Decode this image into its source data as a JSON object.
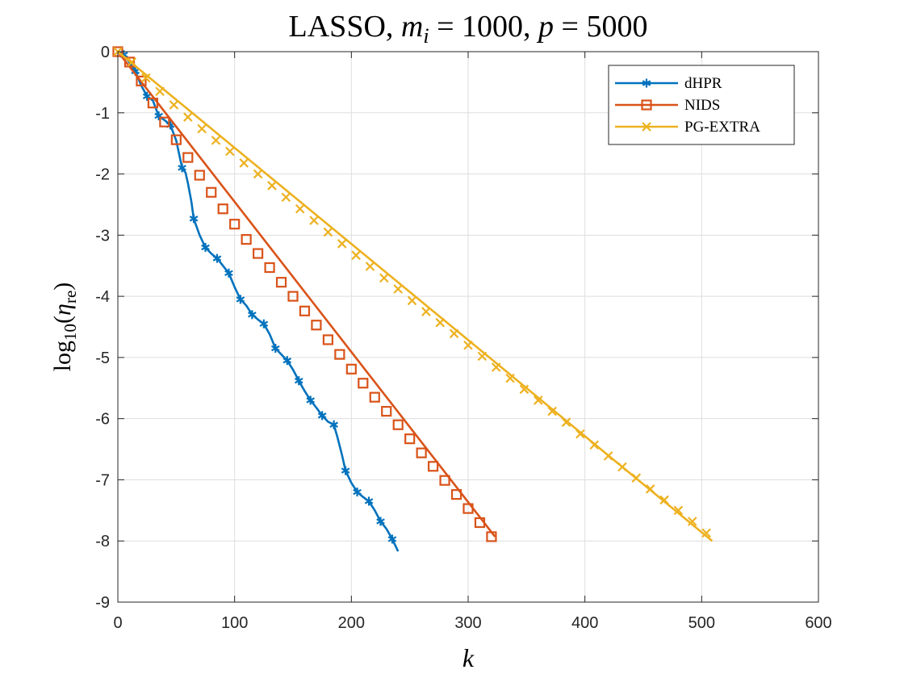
{
  "chart_data": {
    "type": "line",
    "title": {
      "pre": "LASSO, ",
      "m": "m",
      "m_sub": "i",
      "mid": " = 1000, ",
      "p": "p",
      "post": " = 5000"
    },
    "xlabel": "k",
    "ylabel": {
      "func": "log",
      "sub": "10",
      "open": "(",
      "var": "η",
      "var_sub": "re",
      "close": ")"
    },
    "xlim": [
      0,
      600
    ],
    "ylim": [
      -9,
      0
    ],
    "xticks": [
      0,
      100,
      200,
      300,
      400,
      500,
      600
    ],
    "yticks": [
      0,
      -1,
      -2,
      -3,
      -4,
      -5,
      -6,
      -7,
      -8,
      -9
    ],
    "grid": true,
    "legend_position": "top-right",
    "series": [
      {
        "name": "dHPR",
        "color": "#0072BD",
        "marker": "asterisk",
        "curve": [
          [
            0,
            0
          ],
          [
            5,
            -0.05
          ],
          [
            10,
            -0.18
          ],
          [
            15,
            -0.32
          ],
          [
            20,
            -0.55
          ],
          [
            25,
            -0.73
          ],
          [
            30,
            -0.8
          ],
          [
            35,
            -1.05
          ],
          [
            40,
            -1.12
          ],
          [
            45,
            -1.2
          ],
          [
            50,
            -1.45
          ],
          [
            55,
            -1.9
          ],
          [
            58,
            -1.98
          ],
          [
            60,
            -2.15
          ],
          [
            63,
            -2.45
          ],
          [
            65,
            -2.73
          ],
          [
            70,
            -3.0
          ],
          [
            75,
            -3.2
          ],
          [
            80,
            -3.3
          ],
          [
            85,
            -3.38
          ],
          [
            90,
            -3.5
          ],
          [
            95,
            -3.62
          ],
          [
            100,
            -3.85
          ],
          [
            105,
            -4.05
          ],
          [
            110,
            -4.15
          ],
          [
            115,
            -4.3
          ],
          [
            120,
            -4.38
          ],
          [
            125,
            -4.45
          ],
          [
            130,
            -4.62
          ],
          [
            135,
            -4.85
          ],
          [
            140,
            -4.95
          ],
          [
            145,
            -5.05
          ],
          [
            150,
            -5.2
          ],
          [
            155,
            -5.38
          ],
          [
            160,
            -5.55
          ],
          [
            165,
            -5.7
          ],
          [
            170,
            -5.82
          ],
          [
            175,
            -5.95
          ],
          [
            180,
            -6.05
          ],
          [
            185,
            -6.1
          ],
          [
            188,
            -6.3
          ],
          [
            192,
            -6.6
          ],
          [
            195,
            -6.85
          ],
          [
            200,
            -7.05
          ],
          [
            205,
            -7.2
          ],
          [
            210,
            -7.28
          ],
          [
            215,
            -7.35
          ],
          [
            220,
            -7.5
          ],
          [
            225,
            -7.68
          ],
          [
            230,
            -7.8
          ],
          [
            235,
            -7.97
          ],
          [
            240,
            -8.17
          ]
        ],
        "markers": [
          [
            5,
            -0.05
          ],
          [
            15,
            -0.32
          ],
          [
            25,
            -0.73
          ],
          [
            35,
            -1.05
          ],
          [
            45,
            -1.2
          ],
          [
            55,
            -1.9
          ],
          [
            65,
            -2.73
          ],
          [
            75,
            -3.2
          ],
          [
            85,
            -3.38
          ],
          [
            95,
            -3.62
          ],
          [
            105,
            -4.05
          ],
          [
            115,
            -4.3
          ],
          [
            125,
            -4.45
          ],
          [
            135,
            -4.85
          ],
          [
            145,
            -5.05
          ],
          [
            155,
            -5.38
          ],
          [
            165,
            -5.7
          ],
          [
            175,
            -5.95
          ],
          [
            185,
            -6.1
          ],
          [
            195,
            -6.85
          ],
          [
            205,
            -7.2
          ],
          [
            215,
            -7.35
          ],
          [
            225,
            -7.68
          ],
          [
            235,
            -7.97
          ]
        ]
      },
      {
        "name": "NIDS",
        "color": "#D95319",
        "marker": "square",
        "curve": [
          [
            0,
            0
          ],
          [
            323,
            -7.93
          ]
        ],
        "markers": [
          [
            0,
            0
          ],
          [
            10,
            -0.17
          ],
          [
            20,
            -0.48
          ],
          [
            30,
            -0.84
          ],
          [
            40,
            -1.15
          ],
          [
            50,
            -1.44
          ],
          [
            60,
            -1.73
          ],
          [
            70,
            -2.02
          ],
          [
            80,
            -2.3
          ],
          [
            90,
            -2.57
          ],
          [
            100,
            -2.82
          ],
          [
            110,
            -3.07
          ],
          [
            120,
            -3.3
          ],
          [
            130,
            -3.53
          ],
          [
            140,
            -3.77
          ],
          [
            150,
            -4.0
          ],
          [
            160,
            -4.24
          ],
          [
            170,
            -4.47
          ],
          [
            180,
            -4.71
          ],
          [
            190,
            -4.95
          ],
          [
            200,
            -5.19
          ],
          [
            210,
            -5.42
          ],
          [
            220,
            -5.65
          ],
          [
            230,
            -5.88
          ],
          [
            240,
            -6.1
          ],
          [
            250,
            -6.33
          ],
          [
            260,
            -6.56
          ],
          [
            270,
            -6.78
          ],
          [
            280,
            -7.01
          ],
          [
            290,
            -7.24
          ],
          [
            300,
            -7.47
          ],
          [
            310,
            -7.7
          ],
          [
            320,
            -7.93
          ]
        ]
      },
      {
        "name": "PG-EXTRA",
        "color": "#EDB120",
        "marker": "x",
        "curve": [
          [
            0,
            0
          ],
          [
            509,
            -8.0
          ]
        ],
        "markers": [
          [
            0,
            0
          ],
          [
            12,
            -0.17
          ],
          [
            24,
            -0.43
          ],
          [
            36,
            -0.65
          ],
          [
            48,
            -0.87
          ],
          [
            60,
            -1.07
          ],
          [
            72,
            -1.26
          ],
          [
            84,
            -1.45
          ],
          [
            96,
            -1.63
          ],
          [
            108,
            -1.82
          ],
          [
            120,
            -2.0
          ],
          [
            132,
            -2.19
          ],
          [
            144,
            -2.38
          ],
          [
            156,
            -2.57
          ],
          [
            168,
            -2.76
          ],
          [
            180,
            -2.95
          ],
          [
            192,
            -3.14
          ],
          [
            204,
            -3.33
          ],
          [
            216,
            -3.51
          ],
          [
            228,
            -3.7
          ],
          [
            240,
            -3.88
          ],
          [
            252,
            -4.07
          ],
          [
            264,
            -4.25
          ],
          [
            276,
            -4.43
          ],
          [
            288,
            -4.61
          ],
          [
            300,
            -4.8
          ],
          [
            312,
            -4.98
          ],
          [
            324,
            -5.16
          ],
          [
            336,
            -5.34
          ],
          [
            348,
            -5.52
          ],
          [
            360,
            -5.7
          ],
          [
            372,
            -5.88
          ],
          [
            384,
            -6.06
          ],
          [
            396,
            -6.25
          ],
          [
            408,
            -6.43
          ],
          [
            420,
            -6.61
          ],
          [
            432,
            -6.79
          ],
          [
            444,
            -6.97
          ],
          [
            456,
            -7.15
          ],
          [
            468,
            -7.33
          ],
          [
            480,
            -7.5
          ],
          [
            492,
            -7.68
          ],
          [
            504,
            -7.87
          ]
        ]
      }
    ]
  }
}
